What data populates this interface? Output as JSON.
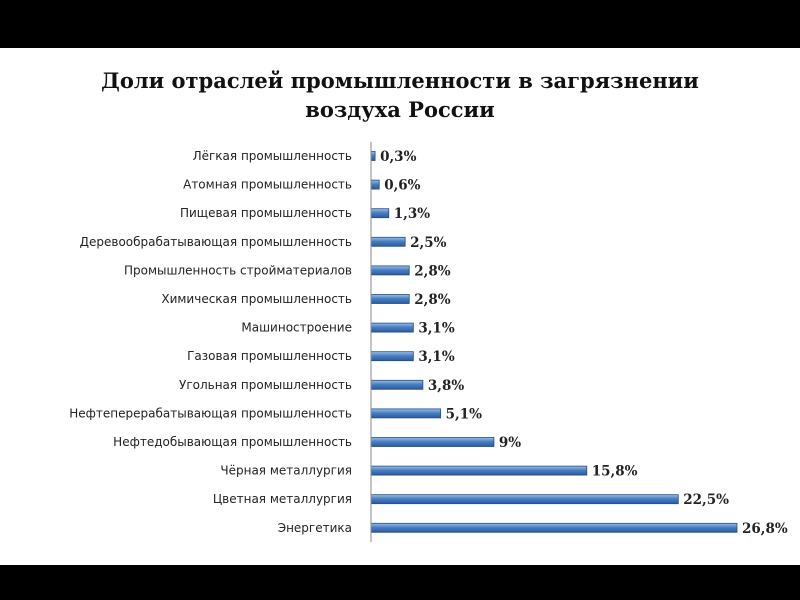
{
  "chart_data": {
    "type": "bar",
    "orientation": "horizontal",
    "title": [
      "Доли отраслей промышленности в загрязнении",
      "воздуха России"
    ],
    "categories": [
      "Лёгкая промышленность",
      "Атомная промышленность",
      "Пищевая промышленность",
      "Деревообрабатывающая промышленность",
      "Промышленность стройматериалов",
      "Химическая промышленность",
      "Машиностроение",
      "Газовая промышленность",
      "Угольная промышленность",
      "Нефтеперерабатывающая промышленность",
      "Нефтедобывающая промышленность",
      "Чёрная металлургия",
      "Цветная металлургия",
      "Энергетика"
    ],
    "values": [
      0.3,
      0.6,
      1.3,
      2.5,
      2.8,
      2.8,
      3.1,
      3.1,
      3.8,
      5.1,
      9,
      15.8,
      22.5,
      26.8
    ],
    "value_labels": [
      "0,3%",
      "0,6%",
      "1,3%",
      "2,5%",
      "2,8%",
      "2,8%",
      "3,1%",
      "3,1%",
      "3,8%",
      "5,1%",
      "9%",
      "15,8%",
      "22,5%",
      "26,8%"
    ],
    "xlim": [
      0,
      26.8
    ],
    "grid": false,
    "legend": "none",
    "bar_color": "#4a7fc1",
    "bar_edge_color": "#1f4e8c"
  }
}
